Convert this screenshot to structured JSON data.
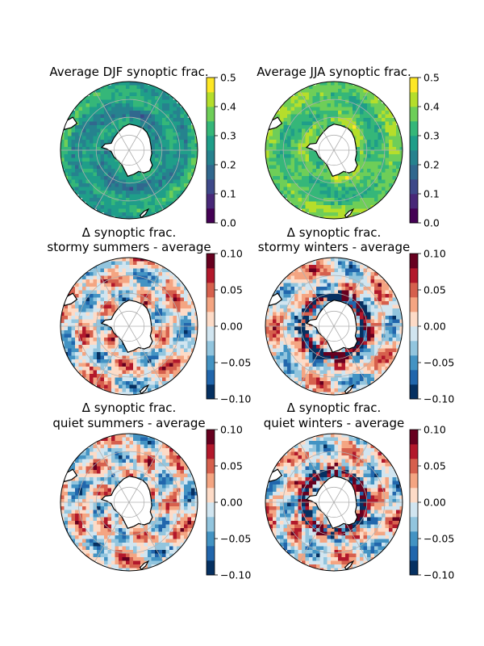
{
  "panels": [
    {
      "id": "djf_avg",
      "title_lines": [
        "Average DJF synoptic frac."
      ],
      "colormap": "viridis",
      "colorbar": {
        "ticks": [
          "0.0",
          "0.1",
          "0.2",
          "0.3",
          "0.4",
          "0.5"
        ],
        "range": [
          0.0,
          0.5
        ],
        "levels": 10
      }
    },
    {
      "id": "jja_avg",
      "title_lines": [
        "Average JJA synoptic frac."
      ],
      "colormap": "viridis",
      "colorbar": {
        "ticks": [
          "0.0",
          "0.1",
          "0.2",
          "0.3",
          "0.4",
          "0.5"
        ],
        "range": [
          0.0,
          0.5
        ],
        "levels": 10
      }
    },
    {
      "id": "stormy_summers",
      "title_lines": [
        "Δ synoptic frac.",
        "stormy summers - average"
      ],
      "colormap": "RdBu_r",
      "colorbar": {
        "ticks": [
          "0.10",
          "0.05",
          "0.00",
          "−0.05",
          "−0.10"
        ],
        "range": [
          -0.1,
          0.1
        ],
        "levels": 10
      }
    },
    {
      "id": "stormy_winters",
      "title_lines": [
        "Δ synoptic frac.",
        "stormy winters - average"
      ],
      "colormap": "RdBu_r",
      "colorbar": {
        "ticks": [
          "0.10",
          "0.05",
          "0.00",
          "−0.05",
          "−0.10"
        ],
        "range": [
          -0.1,
          0.1
        ],
        "levels": 10
      }
    },
    {
      "id": "quiet_summers",
      "title_lines": [
        "Δ synoptic frac.",
        "quiet summers - average"
      ],
      "colormap": "RdBu_r",
      "colorbar": {
        "ticks": [
          "0.10",
          "0.05",
          "0.00",
          "−0.05",
          "−0.10"
        ],
        "range": [
          -0.1,
          0.1
        ],
        "levels": 10
      }
    },
    {
      "id": "quiet_winters",
      "title_lines": [
        "Δ synoptic frac.",
        "quiet winters - average"
      ],
      "colormap": "RdBu_r",
      "colorbar": {
        "ticks": [
          "0.10",
          "0.05",
          "0.00",
          "−0.05",
          "−0.10"
        ],
        "range": [
          -0.1,
          0.1
        ],
        "levels": 10
      }
    }
  ],
  "colormaps": {
    "viridis": [
      "#440154",
      "#482878",
      "#3e4989",
      "#31688e",
      "#26828e",
      "#1f9e89",
      "#35b779",
      "#6ece58",
      "#b5de2b",
      "#fde725"
    ],
    "RdBu_r": [
      "#053061",
      "#2166ac",
      "#4393c3",
      "#92c5de",
      "#d1e5f0",
      "#fddbc7",
      "#f4a582",
      "#d6604d",
      "#b2182b",
      "#67001f"
    ]
  },
  "map": {
    "projection": "south-polar-stereographic",
    "land_color": "#ffffff",
    "coast_color": "#000000",
    "grid_color": "#b0b0b0"
  }
}
